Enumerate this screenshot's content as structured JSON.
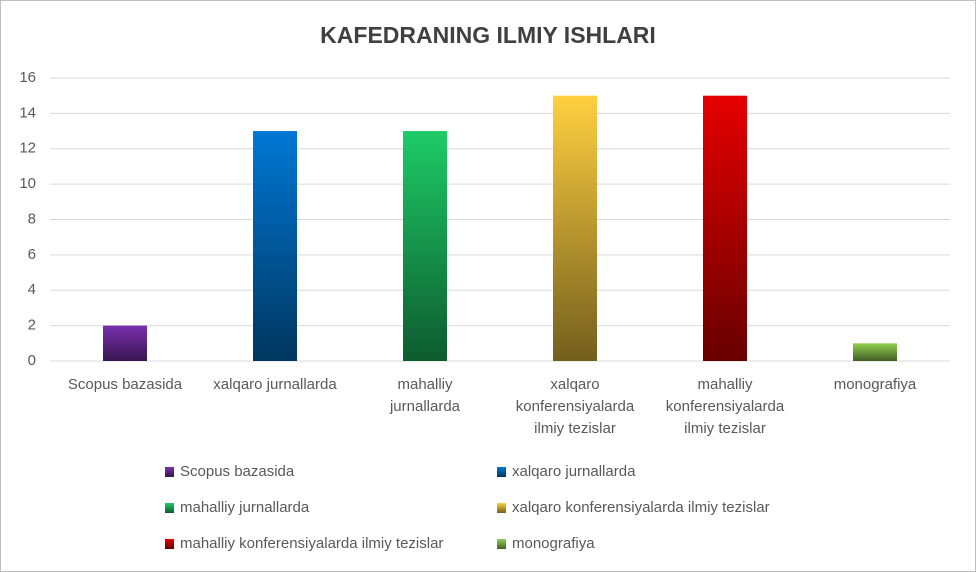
{
  "chart_data": {
    "type": "bar",
    "title": "KAFEDRANING ILMIY ISHLARI",
    "categories": [
      "Scopus bazasida",
      "xalqaro jurnallarda",
      "mahalliy jurnallarda",
      "xalqaro konferensiyalarda ilmiy tezislar",
      "mahalliy konferensiyalarda ilmiy tezislar",
      "monografiya"
    ],
    "values": [
      2,
      13,
      13,
      15,
      15,
      1
    ],
    "colors": [
      "#7a30b0",
      "#0078d4",
      "#1ecb68",
      "#ffd040",
      "#e60000",
      "#92d050"
    ],
    "ylim": [
      0,
      16
    ],
    "yticks": [
      0,
      2,
      4,
      6,
      8,
      10,
      12,
      14,
      16
    ],
    "grid": true,
    "legend": "bottom"
  }
}
